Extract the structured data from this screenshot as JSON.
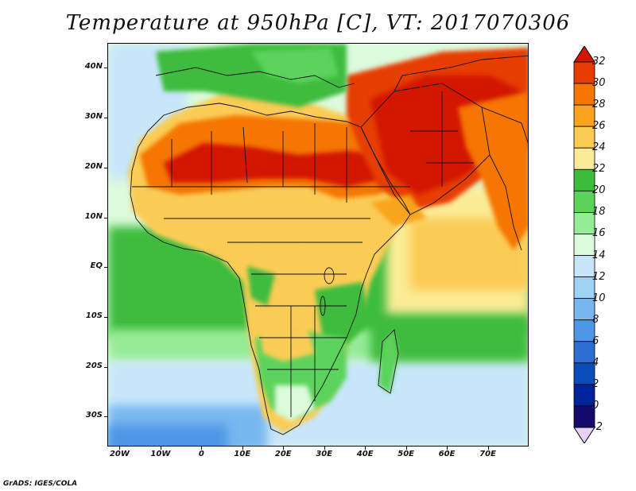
{
  "title": "Temperature at 950hPa [C], VT: 2017070306",
  "footer": "GrADS: IGES/COLA",
  "map": {
    "lon_range": [
      -23,
      80
    ],
    "lat_range": [
      -36,
      45
    ],
    "lat_ticks": [
      "40N",
      "30N",
      "20N",
      "10N",
      "EQ",
      "10S",
      "20S",
      "30S"
    ],
    "lon_ticks": [
      "20W",
      "10W",
      "0",
      "10E",
      "20E",
      "30E",
      "40E",
      "50E",
      "60E",
      "70E"
    ],
    "projection": "lat-lon",
    "boundaries": "country borders"
  },
  "colorbar": {
    "levels": [
      "32",
      "30",
      "28",
      "26",
      "24",
      "22",
      "20",
      "18",
      "16",
      "14",
      "12",
      "10",
      "8",
      "6",
      "4",
      "2",
      "0",
      "-2"
    ],
    "colors": [
      "#d21400",
      "#e63c00",
      "#f57600",
      "#f8a41e",
      "#fbcc55",
      "#fbeb96",
      "#3cbc3c",
      "#5bd35b",
      "#96eb96",
      "#dcfadc",
      "#c7e6fa",
      "#9fd3f5",
      "#78b7f0",
      "#5096e6",
      "#2d6ed2",
      "#0a4cba",
      "#00239b",
      "#140a6e",
      "#e6d2f5"
    ]
  }
}
